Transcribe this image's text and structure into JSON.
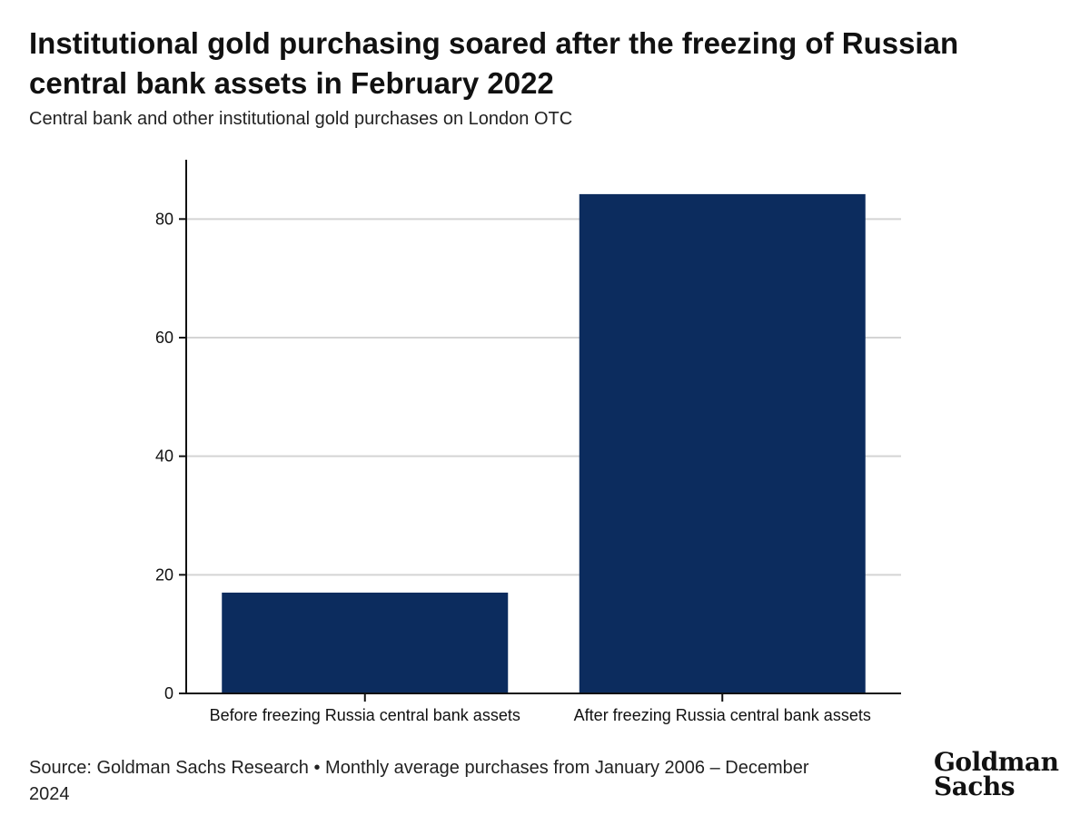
{
  "title": "Institutional gold purchasing soared after the freezing of Russian central bank assets in February 2022",
  "subtitle": "Central bank and other institutional gold purchases on London OTC",
  "source": "Source: Goldman Sachs Research • Monthly average purchases from January 2006 – December 2024",
  "logo": {
    "line1": "Goldman",
    "line2": "Sachs"
  },
  "colors": {
    "bar": "#0c2c5e",
    "grid": "#d4d4d4",
    "axis": "#111111"
  },
  "chart_data": {
    "type": "bar",
    "categories": [
      "Before freezing Russia central bank assets",
      "After freezing Russia central bank assets"
    ],
    "values": [
      17,
      84.2
    ],
    "title": "Institutional gold purchasing soared after the freezing of Russian central bank assets in February 2022",
    "subtitle": "Central bank and other institutional gold purchases on London OTC",
    "xlabel": "",
    "ylabel": "",
    "ylim": [
      0,
      90
    ],
    "yticks": [
      0,
      20,
      40,
      60,
      80
    ],
    "grid": true,
    "legend": "none"
  }
}
